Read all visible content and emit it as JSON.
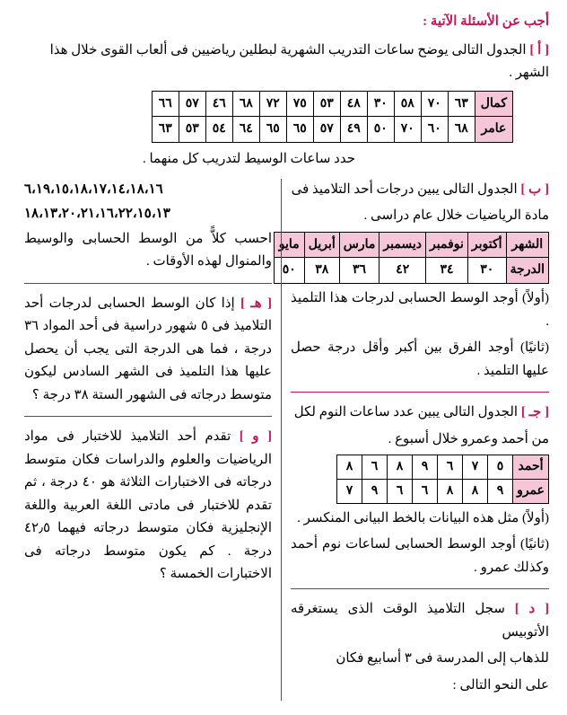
{
  "heading": "أجب عن الأسئلة الآتية :",
  "qA": {
    "label": "[ أ ]",
    "text": "الجدول التالى يوضح ساعات التدريب الشهرية لبطلين رياضيين فى ألعاب القوى خلال هذا الشهر .",
    "rows": {
      "kamal_label": "كمال",
      "amer_label": "عامر",
      "kamal": [
        "٦٣",
        "٧٠",
        "٥٨",
        "٣٠",
        "٤٨",
        "٥٣",
        "٧٥",
        "٧٢",
        "٦٨",
        "٤٦",
        "٥٧",
        "٦٦"
      ],
      "amer": [
        "٦٨",
        "٦٠",
        "٧٠",
        "٥٠",
        "٤٩",
        "٥٧",
        "٦٥",
        "٦٥",
        "٦٤",
        "٥٤",
        "٥٣",
        "٦٣"
      ]
    },
    "after": "حدد ساعات الوسيط لتدريب كل منهما ."
  },
  "qB": {
    "label": "[ ب ]",
    "text1": "الجدول التالى يبين درجات أحد التلاميذ فى",
    "text2": "مادة الرياضيات خلال عام دراسى .",
    "header_label": "الشهر",
    "value_label": "الدرجة",
    "months": [
      "أكتوبر",
      "نوفمبر",
      "ديسمبر",
      "مارس",
      "أبريل",
      "مايو"
    ],
    "scores": [
      "٣٠",
      "٣٤",
      "٤٢",
      "٣٦",
      "٣٨",
      "٥٠"
    ],
    "first": "(أولاً) أوجد الوسط الحسابى لدرجات هذا التلميذ .",
    "second": "(ثانيًا) أوجد الفرق بين أكبر وأقل درجة حصل عليها التلميذ ."
  },
  "qC": {
    "label": "[ جـ ]",
    "text1": "الجدول التالى يبين عدد ساعات النوم لكل",
    "text2": "من أحمد وعمرو خلال أسبوع .",
    "ahmed_label": "أحمد",
    "amr_label": "عمرو",
    "ahmed": [
      "٥",
      "٧",
      "٦",
      "٩",
      "٨",
      "٦",
      "٨"
    ],
    "amr": [
      "٩",
      "٨",
      "٨",
      "٦",
      "٦",
      "٩",
      "٧"
    ],
    "first": "(أولاً) مثل هذه البيانات بالخط البيانى المنكسر .",
    "second": "(ثانيًا) أوجد الوسط الحسابى لساعات نوم أحمد وكذلك عمرو ."
  },
  "qD": {
    "label": "[ د ]",
    "text1": "سجل التلاميذ الوقت الذى يستغرقه الأتوبيس",
    "text2": "للذهاب إلى المدرسة فى ٣ أسابيع فكان",
    "text3": "على النحو التالى :"
  },
  "left_numbers": {
    "line1": "٦،١٩،١٥،١٨،١٧،١٤،١٨،١٦",
    "line2": "١٨،١٣،٢٠،٢١،١٦،٢٢،١٥،١٣"
  },
  "left_after_numbers": "احسب كلاًّ من الوسط الحسابى والوسيط والمنوال لهذه الأوقات .",
  "qH": {
    "label": "[ هـ ]",
    "text": "إذا كان الوسط الحسابى لدرجات أحد التلاميذ فى ٥ شهور دراسية فى أحد المواد ٣٦ درجة ، فما هى الدرجة التى يجب أن يحصل عليها هذا التلميذ فى الشهر السادس ليكون متوسط درجاته فى الشهور الستة ٣٨ درجة ؟"
  },
  "qW": {
    "label": "[ و ]",
    "text": "تقدم أحد التلاميذ للاختبار فى مواد الرياضيات والعلوم والدراسات فكان متوسط درجاته فى الاختبارات الثلاثة هو ٤٠ درجة ، ثم تقدم للاختبار فى مادتى اللغة العربية واللغة الإنجليزية فكان متوسط درجاته فيهما ٤٢٫٥ درجة . كم يكون متوسط درجاته فى الاختبارات الخمسة ؟"
  }
}
